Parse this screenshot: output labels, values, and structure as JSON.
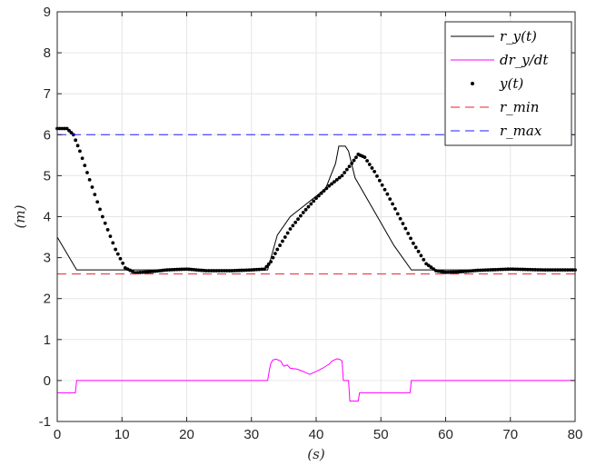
{
  "chart_data": {
    "type": "line",
    "xlabel": "(s)",
    "ylabel": "(m)",
    "xlim": [
      0,
      80
    ],
    "ylim": [
      -1,
      9
    ],
    "xticks": [
      "0",
      "10",
      "20",
      "30",
      "40",
      "50",
      "60",
      "70",
      "80"
    ],
    "yticks": [
      "-1",
      "0",
      "1",
      "2",
      "3",
      "4",
      "5",
      "6",
      "7",
      "8",
      "9"
    ],
    "grid": true,
    "legend_position": "top-right",
    "legend": [
      "r_y(t)",
      "dr_y/dt",
      "y(t)",
      "r_min",
      "r_max"
    ],
    "series": [
      {
        "name": "r_y(t)",
        "style": "solid",
        "color": "#000000",
        "x": [
          0,
          3,
          32.5,
          34,
          36,
          38,
          40,
          41.5,
          43,
          43.5,
          44.5,
          45,
          46,
          48,
          50,
          52,
          54.7,
          80
        ],
        "y": [
          3.5,
          2.7,
          2.7,
          3.55,
          4.0,
          4.25,
          4.5,
          4.7,
          5.3,
          5.72,
          5.72,
          5.6,
          4.95,
          4.4,
          3.85,
          3.3,
          2.7,
          2.7
        ]
      },
      {
        "name": "dr_y/dt",
        "style": "solid",
        "color": "#ff00ff",
        "x": [
          0,
          2.8,
          3,
          32.5,
          32.8,
          33,
          33.3,
          33.8,
          34.5,
          35,
          35.5,
          36,
          37,
          38,
          39,
          40,
          41,
          42,
          42.5,
          43.2,
          43.6,
          44,
          44.2,
          44.5,
          45,
          45.2,
          46.5,
          46.7,
          54.5,
          54.7,
          80
        ],
        "y": [
          -0.3,
          -0.3,
          0.0,
          0.0,
          0.28,
          0.42,
          0.5,
          0.52,
          0.48,
          0.35,
          0.38,
          0.3,
          0.28,
          0.22,
          0.15,
          0.22,
          0.3,
          0.4,
          0.48,
          0.53,
          0.52,
          0.48,
          0.0,
          0.0,
          0.0,
          -0.5,
          -0.5,
          -0.3,
          -0.3,
          0.0,
          0.0
        ]
      },
      {
        "name": "y(t)",
        "style": "dots",
        "color": "#000000",
        "x": [
          0,
          1.5,
          2.5,
          3.5,
          5,
          7,
          9,
          10.5,
          12,
          14,
          17,
          20,
          23,
          27,
          30,
          32,
          33,
          34,
          36,
          38,
          40,
          42,
          44,
          45.5,
          46.5,
          47.5,
          49,
          51,
          53,
          55,
          57,
          58.5,
          60,
          62,
          65,
          70,
          75,
          80
        ],
        "y": [
          6.15,
          6.15,
          6.0,
          5.6,
          4.9,
          4.0,
          3.2,
          2.75,
          2.63,
          2.65,
          2.7,
          2.72,
          2.68,
          2.68,
          2.7,
          2.72,
          2.9,
          3.2,
          3.7,
          4.1,
          4.45,
          4.75,
          5.0,
          5.3,
          5.52,
          5.45,
          5.1,
          4.55,
          3.95,
          3.35,
          2.85,
          2.68,
          2.64,
          2.65,
          2.69,
          2.72,
          2.7,
          2.7
        ]
      },
      {
        "name": "r_min",
        "style": "dashed",
        "color": "#e8222a",
        "x": [
          0,
          80
        ],
        "y": [
          2.6,
          2.6
        ]
      },
      {
        "name": "r_max",
        "style": "dashed",
        "color": "#1f1fff",
        "x": [
          0,
          80
        ],
        "y": [
          6.0,
          6.0
        ]
      }
    ]
  }
}
